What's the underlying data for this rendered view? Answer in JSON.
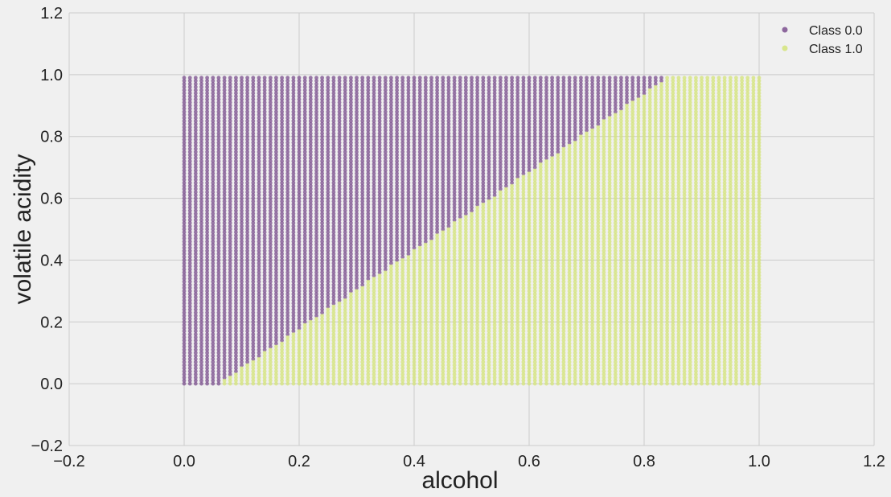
{
  "chart_data": {
    "type": "scatter",
    "title": "",
    "xlabel": "alcohol",
    "ylabel": "volatile acidity",
    "xlim": [
      -0.2,
      1.2
    ],
    "ylim": [
      -0.2,
      1.2
    ],
    "xticks": [
      "−0.2",
      "0.0",
      "0.2",
      "0.4",
      "0.6",
      "0.8",
      "1.0",
      "1.2"
    ],
    "yticks": [
      "−0.2",
      "0.0",
      "0.2",
      "0.4",
      "0.6",
      "0.8",
      "1.0",
      "1.2"
    ],
    "grid": true,
    "legend_position": "top-right",
    "grid_x": {
      "start": 0.0,
      "stop": 1.0,
      "step": 0.01
    },
    "grid_y": {
      "start": 0.0,
      "stop": 0.99,
      "step": 0.01
    },
    "decision_boundary": {
      "description": "Class 1.0 where volatile acidity < 1.27 * (alcohol - 0.06)",
      "slope": 1.27,
      "x_intercept": 0.06
    },
    "series": [
      {
        "name": "Class 0.0",
        "color": "#7b4f8e"
      },
      {
        "name": "Class 1.0",
        "color": "#d4e47a"
      }
    ]
  }
}
